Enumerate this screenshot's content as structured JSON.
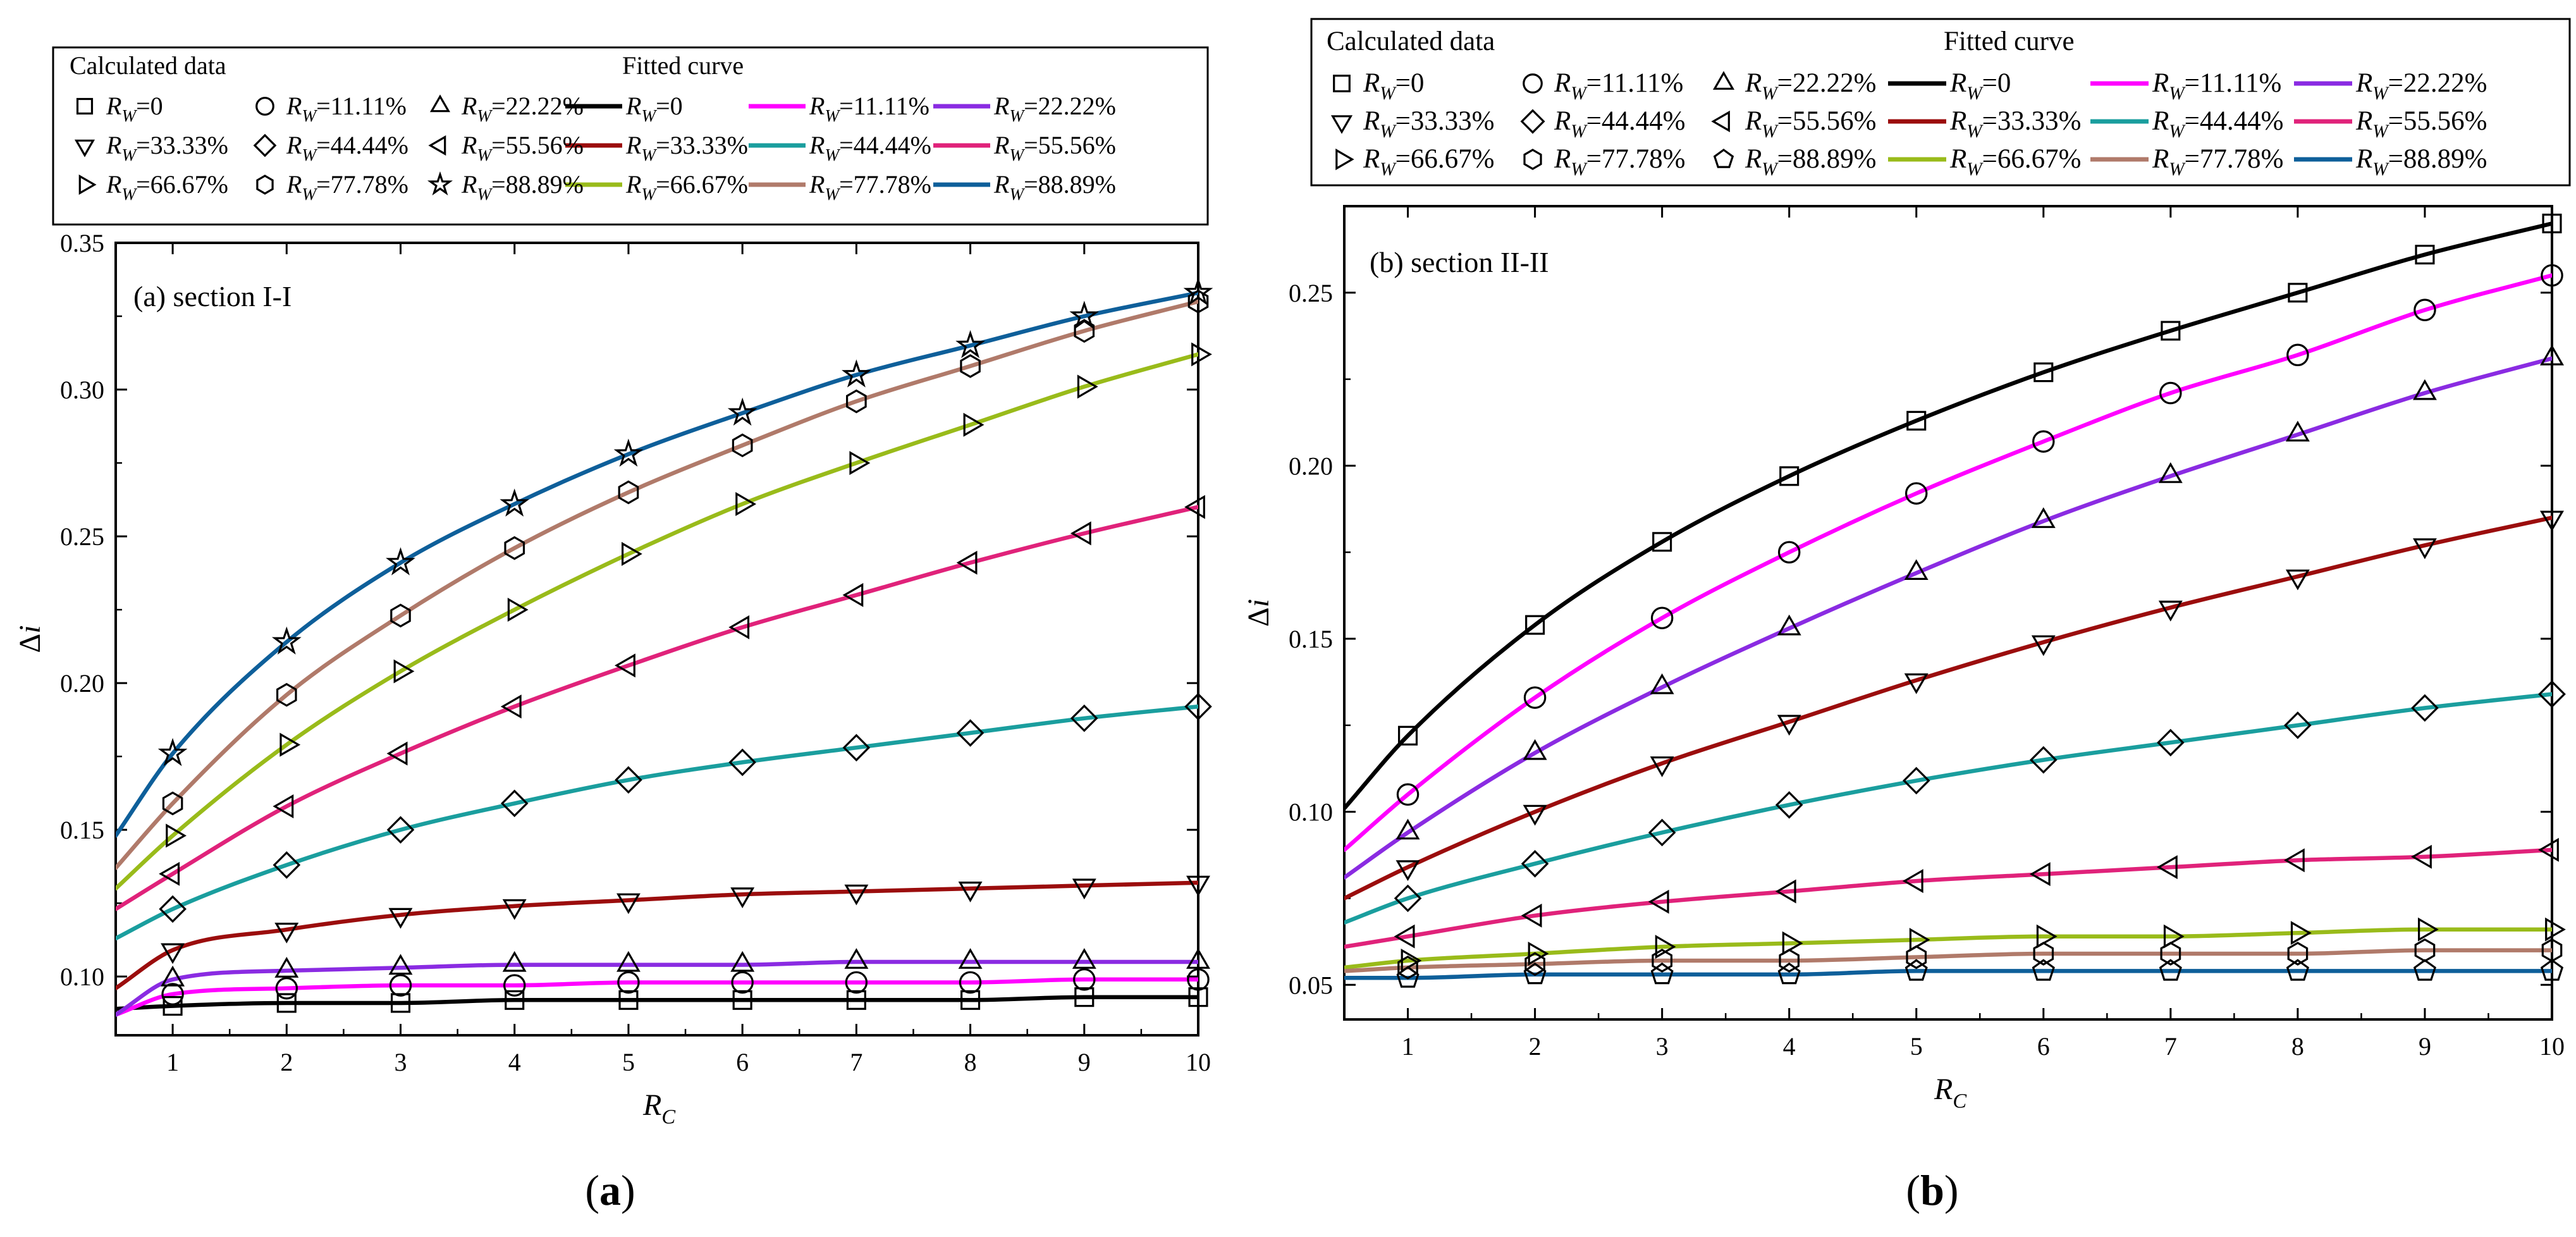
{
  "colors": {
    "series": [
      "#000000",
      "#ff00ff",
      "#8a2be2",
      "#9b0d0d",
      "#1a9e9e",
      "#e0227a",
      "#99bb1a",
      "#b07a6a",
      "#0e5f9a"
    ]
  },
  "chart_data": [
    {
      "type": "line",
      "panel_label": "(a) section I-I",
      "caption": "(a)",
      "xlabel": "R",
      "xlabel_sub": "C",
      "ylabel": "Δi",
      "xlim": [
        0.5,
        10
      ],
      "ylim": [
        0.08,
        0.35
      ],
      "xticks": [
        1,
        2,
        3,
        4,
        5,
        6,
        7,
        8,
        9,
        10
      ],
      "xtick_labels": [
        "1",
        "2",
        "3",
        "4",
        "5",
        "6",
        "7",
        "8",
        "9",
        "10"
      ],
      "yticks": [
        0.1,
        0.15,
        0.2,
        0.25,
        0.3,
        0.35
      ],
      "ytick_labels": [
        "0.10",
        "0.15",
        "0.20",
        "0.25",
        "0.30",
        "0.35"
      ],
      "legend": {
        "calc_title": "Calculated data",
        "fit_title": "Fitted curve",
        "calc_labels": [
          "=0",
          "=11.11%",
          "=22.22%",
          "=33.33%",
          "=44.44%",
          "=55.56%",
          "=66.67%",
          "=77.78%",
          "=88.89%"
        ],
        "fit_labels": [
          "=0",
          "=11.11%",
          "=22.22%",
          "=33.33%",
          "=44.44%",
          "=55.56%",
          "=66.67%",
          "=77.78%",
          "=88.89%"
        ],
        "var": "R",
        "var_sub": "W"
      },
      "x": [
        1,
        2,
        3,
        4,
        5,
        6,
        7,
        8,
        9,
        10
      ],
      "series": [
        {
          "name": "RW=0",
          "marker": "square",
          "curve_start": [
            0.5,
            0.089
          ],
          "values": [
            0.09,
            0.091,
            0.091,
            0.092,
            0.092,
            0.092,
            0.092,
            0.092,
            0.093,
            0.093
          ]
        },
        {
          "name": "RW=11.11%",
          "marker": "circle",
          "curve_start": [
            0.5,
            0.087
          ],
          "values": [
            0.094,
            0.096,
            0.097,
            0.097,
            0.098,
            0.098,
            0.098,
            0.098,
            0.099,
            0.099
          ]
        },
        {
          "name": "RW=22.22%",
          "marker": "triangle-up",
          "curve_start": [
            0.5,
            0.087
          ],
          "values": [
            0.099,
            0.102,
            0.103,
            0.104,
            0.104,
            0.104,
            0.105,
            0.105,
            0.105,
            0.105
          ]
        },
        {
          "name": "RW=33.33%",
          "marker": "triangle-down",
          "curve_start": [
            0.5,
            0.096
          ],
          "values": [
            0.109,
            0.116,
            0.121,
            0.124,
            0.126,
            0.128,
            0.129,
            0.13,
            0.131,
            0.132
          ]
        },
        {
          "name": "RW=44.44%",
          "marker": "diamond",
          "curve_start": [
            0.5,
            0.113
          ],
          "values": [
            0.123,
            0.138,
            0.15,
            0.159,
            0.167,
            0.173,
            0.178,
            0.183,
            0.188,
            0.192
          ]
        },
        {
          "name": "RW=55.56%",
          "marker": "triangle-left",
          "curve_start": [
            0.5,
            0.123
          ],
          "values": [
            0.135,
            0.158,
            0.176,
            0.192,
            0.206,
            0.219,
            0.23,
            0.241,
            0.251,
            0.26
          ]
        },
        {
          "name": "RW=66.67%",
          "marker": "triangle-right",
          "curve_start": [
            0.5,
            0.13
          ],
          "values": [
            0.148,
            0.179,
            0.204,
            0.225,
            0.244,
            0.261,
            0.275,
            0.288,
            0.301,
            0.312
          ]
        },
        {
          "name": "RW=77.78%",
          "marker": "hexagon",
          "curve_start": [
            0.5,
            0.137
          ],
          "values": [
            0.159,
            0.196,
            0.223,
            0.246,
            0.265,
            0.281,
            0.296,
            0.308,
            0.32,
            0.33
          ]
        },
        {
          "name": "RW=88.89%",
          "marker": "star",
          "curve_start": [
            0.5,
            0.148
          ],
          "values": [
            0.176,
            0.214,
            0.241,
            0.261,
            0.278,
            0.292,
            0.305,
            0.315,
            0.325,
            0.333
          ]
        }
      ]
    },
    {
      "type": "line",
      "panel_label": "(b) section II-II",
      "caption": "(b)",
      "xlabel": "R",
      "xlabel_sub": "C",
      "ylabel": "Δi",
      "xlim": [
        0.5,
        10
      ],
      "ylim": [
        0.04,
        0.275
      ],
      "xticks": [
        1,
        2,
        3,
        4,
        5,
        6,
        7,
        8,
        9,
        10
      ],
      "xtick_labels": [
        "1",
        "2",
        "3",
        "4",
        "5",
        "6",
        "7",
        "8",
        "9",
        "10"
      ],
      "yticks": [
        0.05,
        0.1,
        0.15,
        0.2,
        0.25
      ],
      "ytick_labels": [
        "0.05",
        "0.10",
        "0.15",
        "0.20",
        "0.25"
      ],
      "legend": {
        "calc_title": "Calculated data",
        "fit_title": "Fitted curve",
        "calc_labels": [
          "=0",
          "=11.11%",
          "=22.22%",
          "=33.33%",
          "=44.44%",
          "=55.56%",
          "=66.67%",
          "=77.78%",
          "=88.89%"
        ],
        "fit_labels": [
          "=0",
          "=11.11%",
          "=22.22%",
          "=33.33%",
          "=44.44%",
          "=55.56%",
          "=66.67%",
          "=77.78%",
          "=88.89%"
        ],
        "var": "R",
        "var_sub": "W"
      },
      "x": [
        1,
        2,
        3,
        4,
        5,
        6,
        7,
        8,
        9,
        10
      ],
      "series": [
        {
          "name": "RW=0",
          "marker": "square",
          "curve_start": [
            0.5,
            0.101
          ],
          "values": [
            0.122,
            0.154,
            0.178,
            0.197,
            0.213,
            0.227,
            0.239,
            0.25,
            0.261,
            0.27
          ]
        },
        {
          "name": "RW=11.11%",
          "marker": "circle",
          "curve_start": [
            0.5,
            0.089
          ],
          "values": [
            0.105,
            0.133,
            0.156,
            0.175,
            0.192,
            0.207,
            0.221,
            0.232,
            0.245,
            0.255
          ]
        },
        {
          "name": "RW=22.22%",
          "marker": "triangle-up",
          "curve_start": [
            0.5,
            0.081
          ],
          "values": [
            0.094,
            0.117,
            0.136,
            0.153,
            0.169,
            0.184,
            0.197,
            0.209,
            0.221,
            0.231
          ]
        },
        {
          "name": "RW=33.33%",
          "marker": "triangle-down",
          "curve_start": [
            0.5,
            0.075
          ],
          "values": [
            0.084,
            0.1,
            0.114,
            0.126,
            0.138,
            0.149,
            0.159,
            0.168,
            0.177,
            0.185
          ]
        },
        {
          "name": "RW=44.44%",
          "marker": "diamond",
          "curve_start": [
            0.5,
            0.068
          ],
          "values": [
            0.075,
            0.085,
            0.094,
            0.102,
            0.109,
            0.115,
            0.12,
            0.125,
            0.13,
            0.134
          ]
        },
        {
          "name": "RW=55.56%",
          "marker": "triangle-left",
          "curve_start": [
            0.5,
            0.061
          ],
          "values": [
            0.064,
            0.07,
            0.074,
            0.077,
            0.08,
            0.082,
            0.084,
            0.086,
            0.087,
            0.089
          ]
        },
        {
          "name": "RW=66.67%",
          "marker": "triangle-right",
          "curve_start": [
            0.5,
            0.055
          ],
          "values": [
            0.057,
            0.059,
            0.061,
            0.062,
            0.063,
            0.064,
            0.064,
            0.065,
            0.066,
            0.066
          ]
        },
        {
          "name": "RW=77.78%",
          "marker": "hexagon",
          "curve_start": [
            0.5,
            0.054
          ],
          "values": [
            0.055,
            0.056,
            0.057,
            0.057,
            0.058,
            0.059,
            0.059,
            0.059,
            0.06,
            0.06
          ]
        },
        {
          "name": "RW=88.89%",
          "marker": "pentagon",
          "curve_start": [
            0.5,
            0.052
          ],
          "values": [
            0.052,
            0.053,
            0.053,
            0.053,
            0.054,
            0.054,
            0.054,
            0.054,
            0.054,
            0.054
          ]
        }
      ]
    }
  ]
}
